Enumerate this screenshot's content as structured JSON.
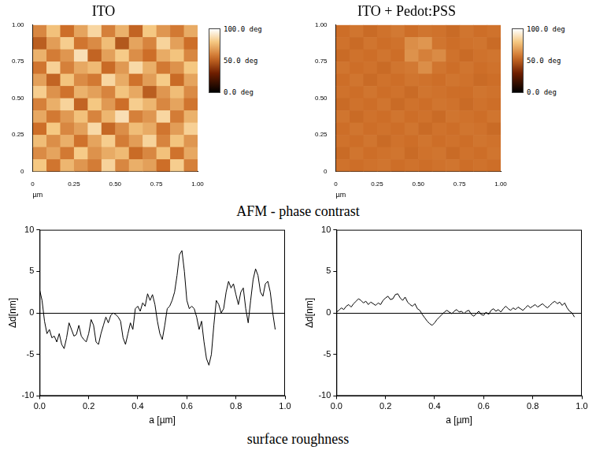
{
  "captions": [
    "AFM - phase contrast",
    "surface roughness"
  ],
  "chart_data": [
    {
      "type": "heatmap",
      "title": "ITO",
      "x_label": "µm",
      "xlim": [
        0,
        1
      ],
      "ylim": [
        0,
        1
      ],
      "xticks": [
        0,
        0.25,
        {
          "value": 0.5,
          "label": "0.50"
        },
        0.75,
        {
          "value": 1,
          "label": "1.00"
        }
      ],
      "yticks": [
        0,
        0.25,
        {
          "value": 0.5,
          "label": "0.50"
        },
        0.75,
        {
          "value": 1,
          "label": "1.00"
        }
      ],
      "colorbar": {
        "range": [
          0,
          100
        ],
        "ticks": [
          {
            "value": 0,
            "label": "0.0 deg"
          },
          {
            "value": 50,
            "label": "50.0 deg"
          },
          {
            "value": 100,
            "label": "100.0 deg"
          }
        ]
      },
      "cells": [
        [
          62,
          78,
          55,
          70,
          85,
          60,
          74,
          52,
          80,
          66,
          58,
          72
        ],
        [
          50,
          68,
          82,
          57,
          63,
          77,
          48,
          70,
          61,
          84,
          69,
          55
        ],
        [
          74,
          59,
          66,
          88,
          52,
          69,
          81,
          64,
          55,
          72,
          79,
          62
        ],
        [
          57,
          83,
          60,
          71,
          76,
          54,
          67,
          86,
          73,
          58,
          65,
          80
        ],
        [
          69,
          52,
          79,
          63,
          58,
          85,
          72,
          56,
          68,
          81,
          54,
          70
        ],
        [
          82,
          65,
          56,
          74,
          69,
          61,
          79,
          71,
          50,
          66,
          77,
          63
        ],
        [
          60,
          73,
          84,
          52,
          80,
          67,
          55,
          82,
          75,
          62,
          70,
          57
        ],
        [
          71,
          58,
          67,
          78,
          61,
          75,
          88,
          60,
          66,
          85,
          59,
          74
        ],
        [
          55,
          80,
          62,
          69,
          86,
          53,
          64,
          77,
          72,
          57,
          68,
          83
        ],
        [
          77,
          64,
          73,
          56,
          70,
          82,
          59,
          68,
          84,
          61,
          79,
          66
        ],
        [
          63,
          70,
          58,
          81,
          65,
          72,
          76,
          54,
          62,
          78,
          56,
          71
        ],
        [
          80,
          57,
          75,
          66,
          59,
          84,
          62,
          73,
          69,
          55,
          82,
          60
        ]
      ]
    },
    {
      "type": "heatmap",
      "title": "ITO + Pedot:PSS",
      "x_label": "µm",
      "xlim": [
        0,
        1
      ],
      "ylim": [
        0,
        1
      ],
      "xticks": [
        0,
        0.25,
        {
          "value": 0.5,
          "label": "0.50"
        },
        0.75,
        {
          "value": 1,
          "label": "1.00"
        }
      ],
      "yticks": [
        0,
        0.25,
        {
          "value": 0.5,
          "label": "0.50"
        },
        0.75,
        {
          "value": 1,
          "label": "1.00"
        }
      ],
      "colorbar": {
        "range": [
          0,
          100
        ],
        "ticks": [
          {
            "value": 0,
            "label": "0.0 deg"
          },
          {
            "value": 50,
            "label": "50.0 deg"
          },
          {
            "value": 100,
            "label": "100.0 deg"
          }
        ]
      },
      "cells": [
        [
          55,
          57,
          54,
          56,
          58,
          55,
          57,
          56,
          54,
          57,
          55,
          56
        ],
        [
          56,
          54,
          57,
          55,
          56,
          64,
          66,
          57,
          55,
          56,
          57,
          54
        ],
        [
          54,
          56,
          55,
          57,
          55,
          65,
          60,
          63,
          56,
          54,
          56,
          57
        ],
        [
          57,
          55,
          56,
          54,
          57,
          58,
          64,
          57,
          55,
          57,
          55,
          56
        ],
        [
          55,
          57,
          54,
          56,
          55,
          57,
          56,
          55,
          57,
          56,
          54,
          55
        ],
        [
          56,
          55,
          57,
          55,
          56,
          54,
          57,
          56,
          55,
          55,
          57,
          56
        ],
        [
          54,
          56,
          55,
          57,
          54,
          56,
          55,
          57,
          56,
          54,
          56,
          55
        ],
        [
          57,
          54,
          56,
          55,
          57,
          55,
          56,
          54,
          57,
          56,
          55,
          57
        ],
        [
          55,
          57,
          55,
          56,
          55,
          57,
          54,
          56,
          55,
          57,
          56,
          54
        ],
        [
          56,
          55,
          57,
          54,
          56,
          55,
          57,
          55,
          56,
          55,
          57,
          56
        ],
        [
          54,
          57,
          55,
          56,
          57,
          54,
          56,
          57,
          54,
          56,
          55,
          57
        ],
        [
          56,
          55,
          56,
          57,
          55,
          56,
          55,
          56,
          57,
          55,
          56,
          55
        ]
      ]
    },
    {
      "type": "line",
      "x_label": "a [µm]",
      "y_label": "Δd[nm]",
      "color": "#000000",
      "xlim": [
        0,
        1
      ],
      "ylim": [
        -10,
        10
      ],
      "xticks": [
        {
          "value": 0,
          "label": "0.0"
        },
        0.2,
        0.4,
        0.6,
        0.8,
        {
          "value": 1,
          "label": "1.0"
        }
      ],
      "yticks": [
        -10,
        -5,
        0,
        5,
        10
      ],
      "x": [
        0.0,
        0.01,
        0.02,
        0.03,
        0.04,
        0.05,
        0.06,
        0.07,
        0.08,
        0.09,
        0.1,
        0.11,
        0.12,
        0.13,
        0.14,
        0.15,
        0.16,
        0.17,
        0.18,
        0.19,
        0.2,
        0.21,
        0.22,
        0.23,
        0.24,
        0.25,
        0.26,
        0.27,
        0.28,
        0.29,
        0.3,
        0.31,
        0.32,
        0.33,
        0.34,
        0.35,
        0.36,
        0.37,
        0.38,
        0.39,
        0.4,
        0.41,
        0.42,
        0.43,
        0.44,
        0.45,
        0.46,
        0.47,
        0.48,
        0.49,
        0.5,
        0.51,
        0.52,
        0.53,
        0.54,
        0.55,
        0.56,
        0.57,
        0.58,
        0.59,
        0.6,
        0.61,
        0.62,
        0.63,
        0.64,
        0.65,
        0.66,
        0.67,
        0.68,
        0.69,
        0.7,
        0.71,
        0.72,
        0.73,
        0.74,
        0.75,
        0.76,
        0.77,
        0.78,
        0.79,
        0.8,
        0.81,
        0.82,
        0.83,
        0.84,
        0.85,
        0.86,
        0.87,
        0.88,
        0.89,
        0.9,
        0.91,
        0.92,
        0.93,
        0.94,
        0.95,
        0.96
      ],
      "values": [
        2.8,
        1.5,
        -1,
        -2.5,
        -2,
        -3,
        -2.8,
        -3.5,
        -2.5,
        -3.8,
        -4.3,
        -3,
        -1.2,
        -2,
        -2.8,
        -2.6,
        -1.5,
        -2.8,
        -3.2,
        -3.5,
        -2.5,
        -0.8,
        -1.5,
        -3.5,
        -3.8,
        -2.5,
        -1.5,
        -0.5,
        -1.2,
        -0.3,
        0,
        -0.2,
        -0.5,
        -1,
        -3,
        -3.8,
        -2.5,
        -1.2,
        -2,
        0.5,
        0.8,
        0.2,
        1.2,
        0.8,
        2.3,
        1.5,
        2.2,
        1,
        -1,
        -2.5,
        -3.2,
        -1.5,
        0.5,
        0.8,
        1.5,
        2.5,
        4.5,
        7,
        7.5,
        5,
        1.5,
        0.5,
        0.8,
        0.5,
        -0.5,
        -2,
        -1,
        -3.5,
        -5.5,
        -6.3,
        -5,
        -1.5,
        1.5,
        1,
        0,
        0.5,
        2.5,
        3.8,
        3,
        3.5,
        2.2,
        1,
        2.5,
        3,
        0.5,
        -1.2,
        1.5,
        4,
        5.3,
        4.5,
        2.5,
        2,
        3.5,
        3.8,
        2.5,
        0,
        -2
      ]
    },
    {
      "type": "line",
      "x_label": "a [µm]",
      "y_label": "Δd[nm]",
      "color": "#000000",
      "xlim": [
        0,
        1
      ],
      "ylim": [
        -10,
        10
      ],
      "xticks": [
        {
          "value": 0,
          "label": "0.0"
        },
        0.2,
        0.4,
        0.6,
        0.8,
        {
          "value": 1,
          "label": "1.0"
        }
      ],
      "yticks": [
        -10,
        -5,
        0,
        5,
        10
      ],
      "x": [
        0.0,
        0.01,
        0.02,
        0.03,
        0.04,
        0.05,
        0.06,
        0.07,
        0.08,
        0.09,
        0.1,
        0.11,
        0.12,
        0.13,
        0.14,
        0.15,
        0.16,
        0.17,
        0.18,
        0.19,
        0.2,
        0.21,
        0.22,
        0.23,
        0.24,
        0.25,
        0.26,
        0.27,
        0.28,
        0.29,
        0.3,
        0.31,
        0.32,
        0.33,
        0.34,
        0.35,
        0.36,
        0.37,
        0.38,
        0.39,
        0.4,
        0.41,
        0.42,
        0.43,
        0.44,
        0.45,
        0.46,
        0.47,
        0.48,
        0.49,
        0.5,
        0.51,
        0.52,
        0.53,
        0.54,
        0.55,
        0.56,
        0.57,
        0.58,
        0.59,
        0.6,
        0.61,
        0.62,
        0.63,
        0.64,
        0.65,
        0.66,
        0.67,
        0.68,
        0.69,
        0.7,
        0.71,
        0.72,
        0.73,
        0.74,
        0.75,
        0.76,
        0.77,
        0.78,
        0.79,
        0.8,
        0.81,
        0.82,
        0.83,
        0.84,
        0.85,
        0.86,
        0.87,
        0.88,
        0.89,
        0.9,
        0.91,
        0.92,
        0.93,
        0.94,
        0.95,
        0.96,
        0.97
      ],
      "values": [
        0.1,
        0.3,
        0.6,
        0.4,
        0.8,
        1.0,
        0.7,
        1.1,
        1.4,
        1.7,
        1.5,
        1.2,
        1.4,
        1.0,
        1.3,
        1.1,
        0.9,
        1.2,
        1.0,
        1.5,
        1.8,
        2.0,
        1.6,
        1.7,
        2.2,
        2.3,
        1.8,
        1.5,
        1.9,
        1.3,
        1.0,
        0.8,
        1.1,
        0.5,
        0.3,
        -0.2,
        -0.6,
        -1.0,
        -1.3,
        -1.5,
        -1.2,
        -0.8,
        -0.5,
        -0.2,
        0.1,
        0.3,
        0.1,
        -0.1,
        0.2,
        0.4,
        0.1,
        0.2,
        -0.1,
        0.2,
        0.3,
        -0.2,
        -0.4,
        -0.1,
        0.2,
        -0.2,
        -0.3,
        0.1,
        -0.2,
        0.3,
        0.5,
        0.2,
        0.4,
        0.1,
        0.5,
        0.8,
        0.5,
        0.3,
        0.6,
        0.4,
        0.7,
        0.5,
        0.3,
        0.6,
        0.9,
        0.6,
        0.8,
        1.0,
        0.7,
        0.9,
        1.1,
        0.8,
        0.6,
        0.9,
        1.2,
        1.4,
        1.1,
        1.3,
        0.9,
        1.2,
        0.6,
        0.2,
        0.0,
        -0.5
      ]
    }
  ]
}
